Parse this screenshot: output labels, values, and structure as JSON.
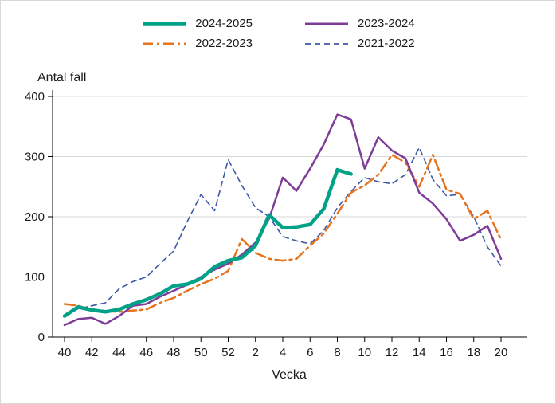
{
  "chart_data": {
    "type": "line",
    "title": "",
    "ylabel": "Antal fall",
    "xlabel": "Vecka",
    "weeks": [
      40,
      41,
      42,
      43,
      44,
      45,
      46,
      47,
      48,
      49,
      50,
      51,
      52,
      1,
      2,
      3,
      4,
      5,
      6,
      7,
      8,
      9,
      10,
      11,
      12,
      13,
      14,
      15,
      16,
      17,
      18,
      19,
      20
    ],
    "x_tick_labels": [
      40,
      42,
      44,
      46,
      48,
      50,
      52,
      2,
      4,
      6,
      8,
      10,
      12,
      14,
      16,
      18,
      20
    ],
    "y_ticks": [
      0,
      100,
      200,
      300,
      400
    ],
    "ylim": [
      0,
      400
    ],
    "grid": "horizontal-light",
    "grid_color": "#d9d9d9",
    "axis_color": "#000000",
    "text_color": "#1a1a1a",
    "legend_position": "top-center",
    "legend_columns": [
      [
        0,
        1
      ],
      [
        2,
        3
      ]
    ],
    "series": [
      {
        "name": "2024-2025",
        "color": "#00a287",
        "style": "solid",
        "width": 4.5,
        "z": 4,
        "values": [
          35,
          50,
          45,
          42,
          46,
          55,
          62,
          72,
          85,
          88,
          97,
          117,
          127,
          132,
          152,
          203,
          182,
          183,
          187,
          213,
          278,
          271,
          null,
          null,
          null,
          null,
          null,
          null,
          null,
          null,
          null,
          null,
          null
        ]
      },
      {
        "name": "2022-2023",
        "color": "#e8731f",
        "style": "dashdot",
        "width": 2.5,
        "z": 2,
        "values": [
          55,
          52,
          46,
          43,
          42,
          44,
          46,
          57,
          65,
          77,
          88,
          97,
          110,
          163,
          140,
          130,
          127,
          130,
          152,
          172,
          205,
          240,
          252,
          270,
          303,
          290,
          250,
          303,
          245,
          238,
          196,
          210,
          162
        ]
      },
      {
        "name": "2023-2024",
        "color": "#7d3c98",
        "style": "solid",
        "width": 2.5,
        "z": 3,
        "values": [
          20,
          30,
          32,
          22,
          35,
          52,
          55,
          67,
          77,
          87,
          100,
          112,
          122,
          137,
          157,
          197,
          265,
          243,
          280,
          320,
          370,
          362,
          280,
          332,
          310,
          297,
          240,
          222,
          196,
          160,
          170,
          185,
          130
        ]
      },
      {
        "name": "2021-2022",
        "color": "#3e58a8",
        "style": "dashed",
        "width": 1.6,
        "z": 1,
        "values": [
          35,
          47,
          52,
          57,
          80,
          92,
          100,
          122,
          143,
          192,
          237,
          210,
          295,
          252,
          215,
          200,
          167,
          160,
          155,
          177,
          215,
          242,
          265,
          258,
          255,
          270,
          315,
          262,
          235,
          237,
          200,
          150,
          118
        ]
      }
    ]
  }
}
